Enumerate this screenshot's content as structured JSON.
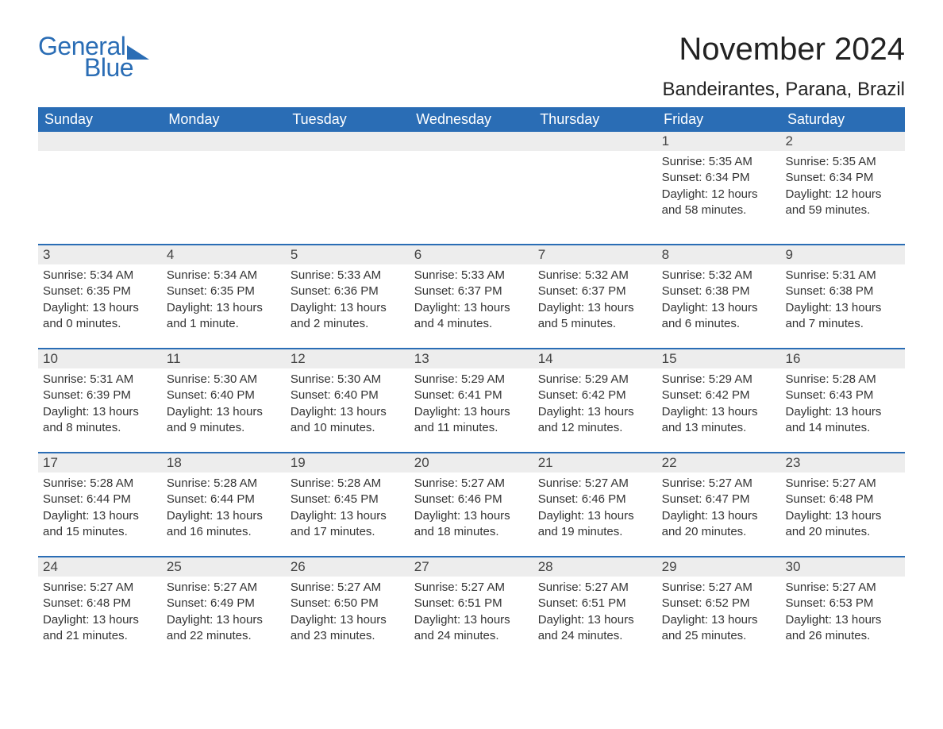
{
  "logo": {
    "general": "General",
    "blue": "Blue"
  },
  "title": "November 2024",
  "location": "Bandeirantes, Parana, Brazil",
  "weekdays": [
    "Sunday",
    "Monday",
    "Tuesday",
    "Wednesday",
    "Thursday",
    "Friday",
    "Saturday"
  ],
  "colors": {
    "header_bg": "#2a6db5",
    "header_text": "#ffffff",
    "day_number_bg": "#ededed",
    "day_border": "#2a6db5",
    "body_text": "#333333",
    "logo_color": "#2a6db5",
    "background": "#ffffff"
  },
  "typography": {
    "title_fontsize": 40,
    "location_fontsize": 24,
    "weekday_fontsize": 18,
    "daynum_fontsize": 17,
    "body_fontsize": 15,
    "logo_fontsize": 32
  },
  "start_weekday_index": 5,
  "days": [
    {
      "n": "1",
      "sunrise": "Sunrise: 5:35 AM",
      "sunset": "Sunset: 6:34 PM",
      "dl1": "Daylight: 12 hours",
      "dl2": "and 58 minutes."
    },
    {
      "n": "2",
      "sunrise": "Sunrise: 5:35 AM",
      "sunset": "Sunset: 6:34 PM",
      "dl1": "Daylight: 12 hours",
      "dl2": "and 59 minutes."
    },
    {
      "n": "3",
      "sunrise": "Sunrise: 5:34 AM",
      "sunset": "Sunset: 6:35 PM",
      "dl1": "Daylight: 13 hours",
      "dl2": "and 0 minutes."
    },
    {
      "n": "4",
      "sunrise": "Sunrise: 5:34 AM",
      "sunset": "Sunset: 6:35 PM",
      "dl1": "Daylight: 13 hours",
      "dl2": "and 1 minute."
    },
    {
      "n": "5",
      "sunrise": "Sunrise: 5:33 AM",
      "sunset": "Sunset: 6:36 PM",
      "dl1": "Daylight: 13 hours",
      "dl2": "and 2 minutes."
    },
    {
      "n": "6",
      "sunrise": "Sunrise: 5:33 AM",
      "sunset": "Sunset: 6:37 PM",
      "dl1": "Daylight: 13 hours",
      "dl2": "and 4 minutes."
    },
    {
      "n": "7",
      "sunrise": "Sunrise: 5:32 AM",
      "sunset": "Sunset: 6:37 PM",
      "dl1": "Daylight: 13 hours",
      "dl2": "and 5 minutes."
    },
    {
      "n": "8",
      "sunrise": "Sunrise: 5:32 AM",
      "sunset": "Sunset: 6:38 PM",
      "dl1": "Daylight: 13 hours",
      "dl2": "and 6 minutes."
    },
    {
      "n": "9",
      "sunrise": "Sunrise: 5:31 AM",
      "sunset": "Sunset: 6:38 PM",
      "dl1": "Daylight: 13 hours",
      "dl2": "and 7 minutes."
    },
    {
      "n": "10",
      "sunrise": "Sunrise: 5:31 AM",
      "sunset": "Sunset: 6:39 PM",
      "dl1": "Daylight: 13 hours",
      "dl2": "and 8 minutes."
    },
    {
      "n": "11",
      "sunrise": "Sunrise: 5:30 AM",
      "sunset": "Sunset: 6:40 PM",
      "dl1": "Daylight: 13 hours",
      "dl2": "and 9 minutes."
    },
    {
      "n": "12",
      "sunrise": "Sunrise: 5:30 AM",
      "sunset": "Sunset: 6:40 PM",
      "dl1": "Daylight: 13 hours",
      "dl2": "and 10 minutes."
    },
    {
      "n": "13",
      "sunrise": "Sunrise: 5:29 AM",
      "sunset": "Sunset: 6:41 PM",
      "dl1": "Daylight: 13 hours",
      "dl2": "and 11 minutes."
    },
    {
      "n": "14",
      "sunrise": "Sunrise: 5:29 AM",
      "sunset": "Sunset: 6:42 PM",
      "dl1": "Daylight: 13 hours",
      "dl2": "and 12 minutes."
    },
    {
      "n": "15",
      "sunrise": "Sunrise: 5:29 AM",
      "sunset": "Sunset: 6:42 PM",
      "dl1": "Daylight: 13 hours",
      "dl2": "and 13 minutes."
    },
    {
      "n": "16",
      "sunrise": "Sunrise: 5:28 AM",
      "sunset": "Sunset: 6:43 PM",
      "dl1": "Daylight: 13 hours",
      "dl2": "and 14 minutes."
    },
    {
      "n": "17",
      "sunrise": "Sunrise: 5:28 AM",
      "sunset": "Sunset: 6:44 PM",
      "dl1": "Daylight: 13 hours",
      "dl2": "and 15 minutes."
    },
    {
      "n": "18",
      "sunrise": "Sunrise: 5:28 AM",
      "sunset": "Sunset: 6:44 PM",
      "dl1": "Daylight: 13 hours",
      "dl2": "and 16 minutes."
    },
    {
      "n": "19",
      "sunrise": "Sunrise: 5:28 AM",
      "sunset": "Sunset: 6:45 PM",
      "dl1": "Daylight: 13 hours",
      "dl2": "and 17 minutes."
    },
    {
      "n": "20",
      "sunrise": "Sunrise: 5:27 AM",
      "sunset": "Sunset: 6:46 PM",
      "dl1": "Daylight: 13 hours",
      "dl2": "and 18 minutes."
    },
    {
      "n": "21",
      "sunrise": "Sunrise: 5:27 AM",
      "sunset": "Sunset: 6:46 PM",
      "dl1": "Daylight: 13 hours",
      "dl2": "and 19 minutes."
    },
    {
      "n": "22",
      "sunrise": "Sunrise: 5:27 AM",
      "sunset": "Sunset: 6:47 PM",
      "dl1": "Daylight: 13 hours",
      "dl2": "and 20 minutes."
    },
    {
      "n": "23",
      "sunrise": "Sunrise: 5:27 AM",
      "sunset": "Sunset: 6:48 PM",
      "dl1": "Daylight: 13 hours",
      "dl2": "and 20 minutes."
    },
    {
      "n": "24",
      "sunrise": "Sunrise: 5:27 AM",
      "sunset": "Sunset: 6:48 PM",
      "dl1": "Daylight: 13 hours",
      "dl2": "and 21 minutes."
    },
    {
      "n": "25",
      "sunrise": "Sunrise: 5:27 AM",
      "sunset": "Sunset: 6:49 PM",
      "dl1": "Daylight: 13 hours",
      "dl2": "and 22 minutes."
    },
    {
      "n": "26",
      "sunrise": "Sunrise: 5:27 AM",
      "sunset": "Sunset: 6:50 PM",
      "dl1": "Daylight: 13 hours",
      "dl2": "and 23 minutes."
    },
    {
      "n": "27",
      "sunrise": "Sunrise: 5:27 AM",
      "sunset": "Sunset: 6:51 PM",
      "dl1": "Daylight: 13 hours",
      "dl2": "and 24 minutes."
    },
    {
      "n": "28",
      "sunrise": "Sunrise: 5:27 AM",
      "sunset": "Sunset: 6:51 PM",
      "dl1": "Daylight: 13 hours",
      "dl2": "and 24 minutes."
    },
    {
      "n": "29",
      "sunrise": "Sunrise: 5:27 AM",
      "sunset": "Sunset: 6:52 PM",
      "dl1": "Daylight: 13 hours",
      "dl2": "and 25 minutes."
    },
    {
      "n": "30",
      "sunrise": "Sunrise: 5:27 AM",
      "sunset": "Sunset: 6:53 PM",
      "dl1": "Daylight: 13 hours",
      "dl2": "and 26 minutes."
    }
  ]
}
